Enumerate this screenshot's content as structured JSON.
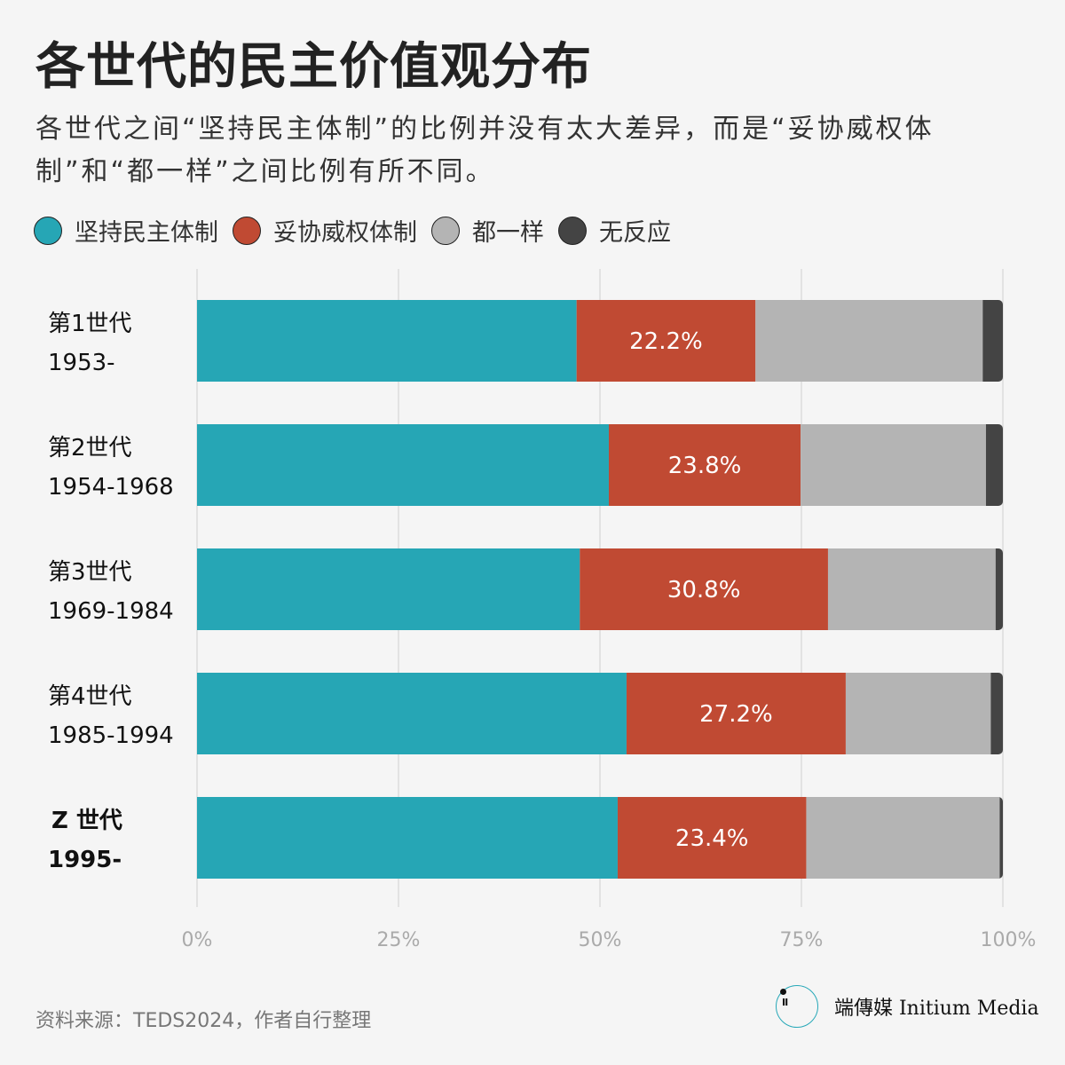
{
  "title": "各世代的民主价值观分布",
  "subtitle": "各世代之间“坚持民主体制”的比例并没有太大差异，而是“妥协威权体制”和“都一样”之间比例有所不同。",
  "source": "资料来源：TEDS2024，作者自行整理",
  "logo": {
    "glyph": "Ⅱ",
    "text": "端傳媒 Initium Media"
  },
  "chart_data": {
    "type": "bar",
    "orientation": "horizontal",
    "stacked": true,
    "title": "各世代的民主价值观分布",
    "categories": [
      {
        "line1": "第1世代",
        "line2": "1953-",
        "bold": false
      },
      {
        "line1": "第2世代",
        "line2": "1954-1968",
        "bold": false
      },
      {
        "line1": "第3世代",
        "line2": "1969-1984",
        "bold": false
      },
      {
        "line1": "第4世代",
        "line2": "1985-1994",
        "bold": false
      },
      {
        "line1": "Z 世代",
        "line2": "1995-",
        "bold": true
      }
    ],
    "series": [
      {
        "name": "坚持民主体制",
        "color": "#26a6b5",
        "values": [
          47.1,
          51.1,
          47.5,
          53.3,
          52.2
        ],
        "show_labels": false
      },
      {
        "name": "妥协威权体制",
        "color": "#c04a33",
        "values": [
          22.2,
          23.8,
          30.8,
          27.2,
          23.4
        ],
        "show_labels": true
      },
      {
        "name": "都一样",
        "color": "#b4b4b4",
        "values": [
          28.2,
          23.0,
          20.8,
          18.0,
          24.0
        ],
        "show_labels": false
      },
      {
        "name": "无反应",
        "color": "#444444",
        "values": [
          2.5,
          2.1,
          0.9,
          1.5,
          0.4
        ],
        "show_labels": false
      }
    ],
    "xlim": [
      0,
      100
    ],
    "xticks": [
      0,
      25,
      50,
      75,
      100
    ],
    "xtick_labels": [
      "0%",
      "25%",
      "50%",
      "75%",
      "100%"
    ],
    "grid": true,
    "legend": "top-left"
  }
}
